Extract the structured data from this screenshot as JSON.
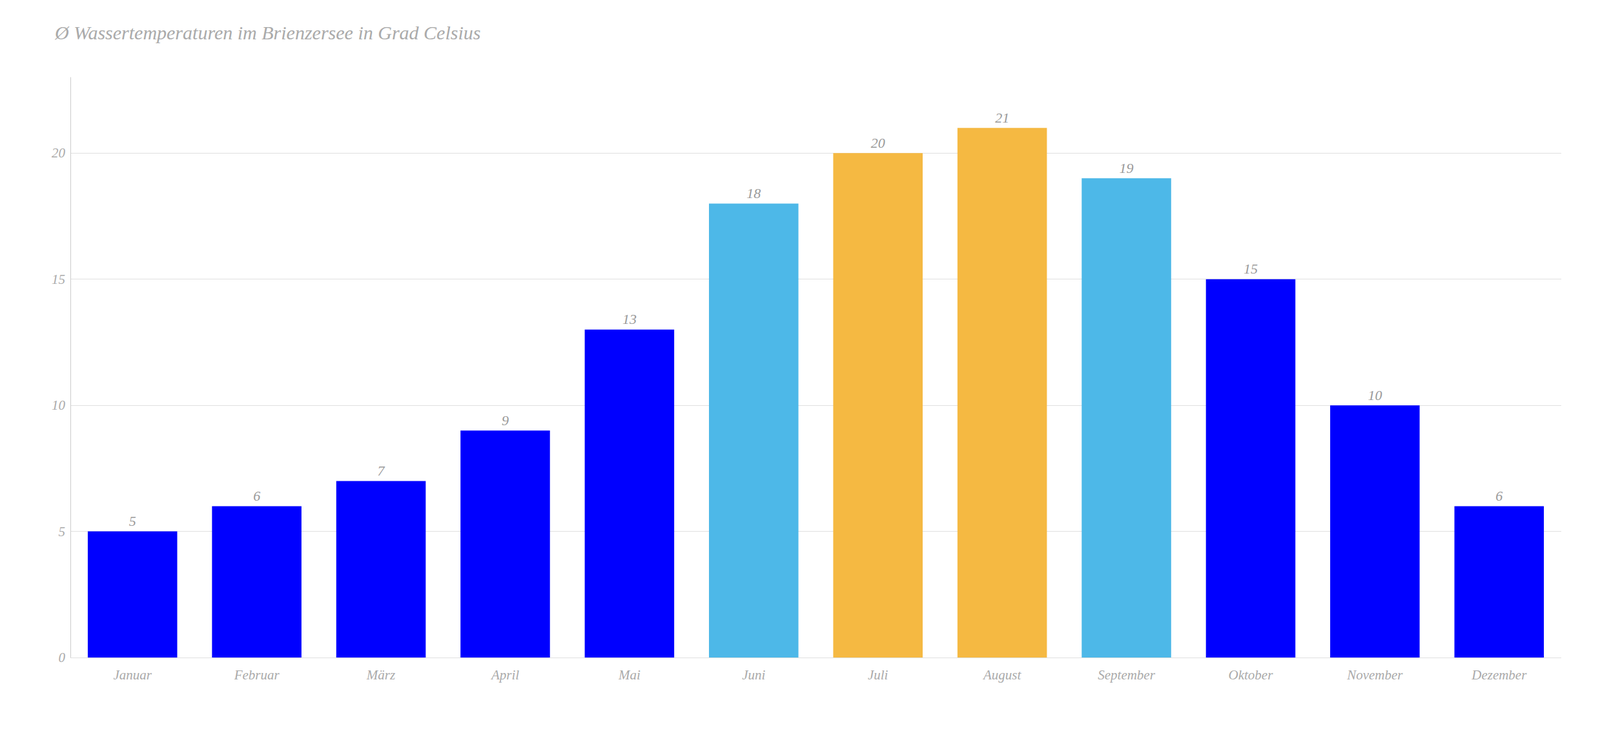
{
  "chart_data": {
    "type": "bar",
    "title": "Ø Wassertemperaturen im Brienzersee in Grad Celsius",
    "categories": [
      "Januar",
      "Februar",
      "März",
      "April",
      "Mai",
      "Juni",
      "Juli",
      "August",
      "September",
      "Oktober",
      "November",
      "Dezember"
    ],
    "values": [
      5,
      6,
      7,
      9,
      13,
      18,
      20,
      21,
      19,
      15,
      10,
      6
    ],
    "colors": [
      "#0000ff",
      "#0000ff",
      "#0000ff",
      "#0000ff",
      "#0000ff",
      "#4db8e8",
      "#f5b942",
      "#f5b942",
      "#4db8e8",
      "#0000ff",
      "#0000ff",
      "#0000ff"
    ],
    "ylim": [
      0,
      23
    ],
    "yticks": [
      0,
      5,
      10,
      15,
      20
    ],
    "grid": true,
    "data_labels": true
  }
}
